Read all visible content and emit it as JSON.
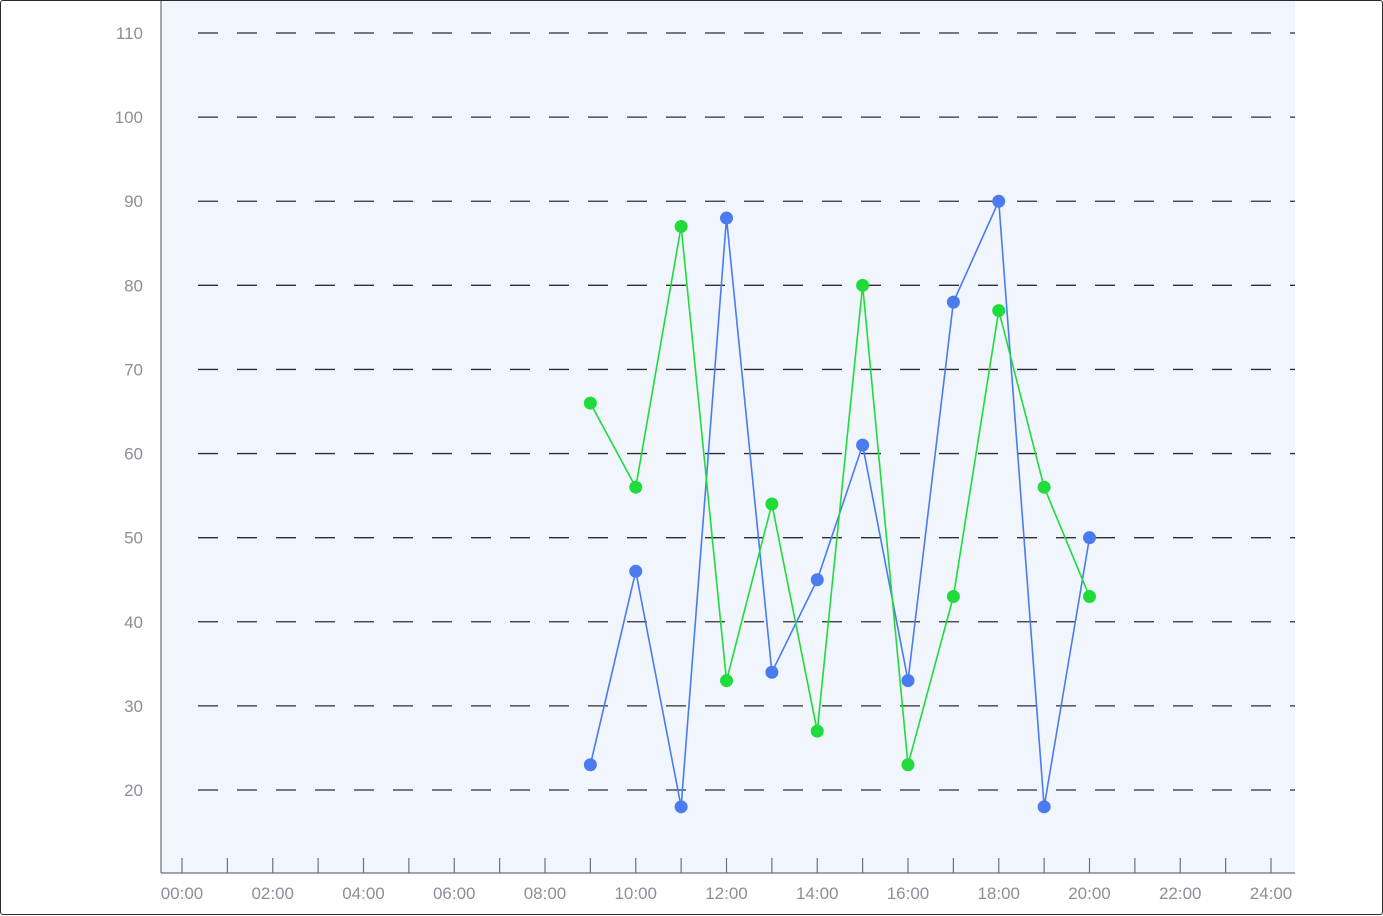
{
  "chart_data": {
    "type": "line",
    "title": "",
    "xlabel": "",
    "ylabel": "",
    "x_ticks": [
      "00:00",
      "02:00",
      "04:00",
      "06:00",
      "08:00",
      "10:00",
      "12:00",
      "14:00",
      "16:00",
      "18:00",
      "20:00",
      "22:00",
      "24:00"
    ],
    "y_ticks": [
      20,
      30,
      40,
      50,
      60,
      70,
      80,
      90,
      100,
      110
    ],
    "xlim_hours": [
      0,
      24
    ],
    "ylim": [
      10,
      114
    ],
    "grid": "horizontal dashed",
    "x": [
      "09:00",
      "10:00",
      "11:00",
      "12:00",
      "13:00",
      "14:00",
      "15:00",
      "16:00",
      "17:00",
      "18:00",
      "19:00",
      "20:00"
    ],
    "series": [
      {
        "color": "#4a7bf0",
        "values": [
          23,
          46,
          18,
          88,
          34,
          45,
          61,
          33,
          78,
          90,
          18,
          50
        ]
      },
      {
        "color": "#1fdc3a",
        "values": [
          66,
          56,
          87,
          33,
          54,
          27,
          80,
          23,
          43,
          77,
          56,
          43
        ]
      }
    ],
    "colors": {
      "plot_background": "#f1f5fd",
      "axis": "#6e7079",
      "grid": "#2f2f2f",
      "label": "#8a8f99"
    }
  }
}
